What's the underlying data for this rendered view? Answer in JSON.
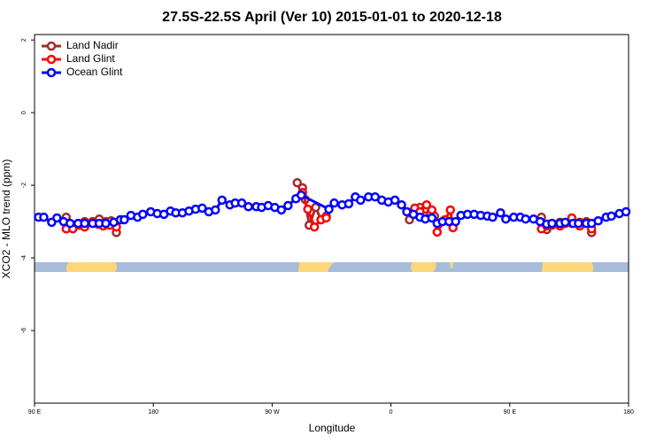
{
  "chart_data": {
    "type": "line",
    "title": "27.5S-22.5S April (Ver 10)   2015-01-01 to 2020-12-18",
    "x_label": "Longitude",
    "y_label": "XCO2 - MLO trend (ppm)",
    "xlim": [
      90,
      540
    ],
    "ylim": [
      -8,
      2.15
    ],
    "xticks": [
      {
        "value": 90,
        "label": "90 E"
      },
      {
        "value": 180,
        "label": "180"
      },
      {
        "value": 270,
        "label": "90 W"
      },
      {
        "value": 360,
        "label": "0"
      },
      {
        "value": 450,
        "label": "90 E"
      },
      {
        "value": 540,
        "label": "180"
      }
    ],
    "yticks": [
      2,
      0,
      -2,
      -4,
      -6
    ],
    "legend": "top-left",
    "series": [
      {
        "name": "Land Nadir",
        "color": "#a52a2a",
        "x": [
          114,
          118,
          123,
          128,
          134,
          139,
          144,
          148,
          152,
          null,
          289,
          293,
          295,
          298,
          303,
          307,
          311,
          null,
          374,
          378,
          382,
          386,
          390,
          393,
          null,
          474,
          478,
          482,
          488,
          492,
          497,
          503,
          508,
          512
        ],
        "values": [
          -2.88,
          -3.12,
          -3.05,
          -3.0,
          -3.0,
          -2.93,
          -3.0,
          -2.98,
          -3.3,
          null,
          -1.93,
          -2.07,
          -2.39,
          -3.1,
          -2.61,
          -2.95,
          -2.85,
          null,
          -2.95,
          -2.71,
          -2.61,
          -2.66,
          -2.76,
          -2.85,
          null,
          -2.88,
          -3.22,
          -3.1,
          -3.02,
          -3.05,
          -3.05,
          -3.02,
          -3.0,
          -3.3
        ]
      },
      {
        "name": "Land Glint",
        "color": "#ff0000",
        "x": [
          114,
          119,
          124,
          128,
          134,
          138,
          142,
          147,
          152,
          null,
          293,
          297,
          302,
          307,
          311,
          null,
          378,
          382,
          387,
          391,
          395,
          401,
          405,
          407,
          null,
          474,
          478,
          482,
          488,
          492,
          497,
          503,
          507,
          512
        ],
        "values": [
          -3.2,
          -3.2,
          -3.1,
          -3.15,
          -3.02,
          -3.07,
          -3.12,
          -3.1,
          -3.15,
          null,
          -2.2,
          -2.66,
          -3.15,
          -2.95,
          -2.9,
          null,
          -2.63,
          -2.73,
          -2.54,
          -2.68,
          -3.29,
          -2.95,
          -2.68,
          -3.17,
          null,
          -3.2,
          -3.12,
          -3.05,
          -3.12,
          -3.05,
          -2.9,
          -3.12,
          -3.05,
          -3.2
        ]
      },
      {
        "name": "Ocean Glint",
        "color": "#0000ff",
        "x": [
          93,
          97,
          103,
          107,
          112,
          117,
          123,
          128,
          134,
          139,
          144,
          150,
          155,
          158,
          163,
          168,
          172,
          178,
          183,
          188,
          193,
          197,
          202,
          207,
          212,
          217,
          222,
          227,
          232,
          238,
          242,
          247,
          252,
          258,
          262,
          267,
          272,
          277,
          282,
          288,
          292,
          313,
          317,
          323,
          328,
          333,
          337,
          343,
          348,
          353,
          358,
          363,
          368,
          372,
          377,
          382,
          386,
          391,
          395,
          399,
          404,
          409,
          413,
          418,
          423,
          428,
          433,
          437,
          443,
          447,
          453,
          458,
          462,
          468,
          473,
          478,
          482,
          488,
          492,
          498,
          502,
          508,
          512,
          517,
          523,
          527,
          533,
          538
        ],
        "values": [
          -2.88,
          -2.88,
          -3.02,
          -2.9,
          -3.0,
          -3.05,
          -3.05,
          -3.05,
          -3.05,
          -3.05,
          -3.05,
          -3.02,
          -2.95,
          -2.95,
          -2.83,
          -2.88,
          -2.8,
          -2.73,
          -2.78,
          -2.8,
          -2.71,
          -2.76,
          -2.76,
          -2.71,
          -2.66,
          -2.63,
          -2.73,
          -2.68,
          -2.41,
          -2.54,
          -2.49,
          -2.49,
          -2.59,
          -2.59,
          -2.61,
          -2.56,
          -2.61,
          -2.68,
          -2.56,
          -2.37,
          -2.27,
          -2.66,
          -2.49,
          -2.54,
          -2.51,
          -2.32,
          -2.41,
          -2.32,
          -2.32,
          -2.41,
          -2.46,
          -2.41,
          -2.54,
          -2.73,
          -2.8,
          -2.88,
          -2.93,
          -2.9,
          -3.05,
          -3.0,
          -3.0,
          -3.0,
          -2.83,
          -2.8,
          -2.8,
          -2.83,
          -2.85,
          -2.88,
          -2.76,
          -2.93,
          -2.88,
          -2.88,
          -2.93,
          -2.93,
          -3.0,
          -3.07,
          -3.05,
          -3.05,
          -3.02,
          -3.05,
          -3.05,
          -3.05,
          -3.05,
          -2.98,
          -2.88,
          -2.85,
          -2.78,
          -2.73
        ]
      }
    ]
  }
}
